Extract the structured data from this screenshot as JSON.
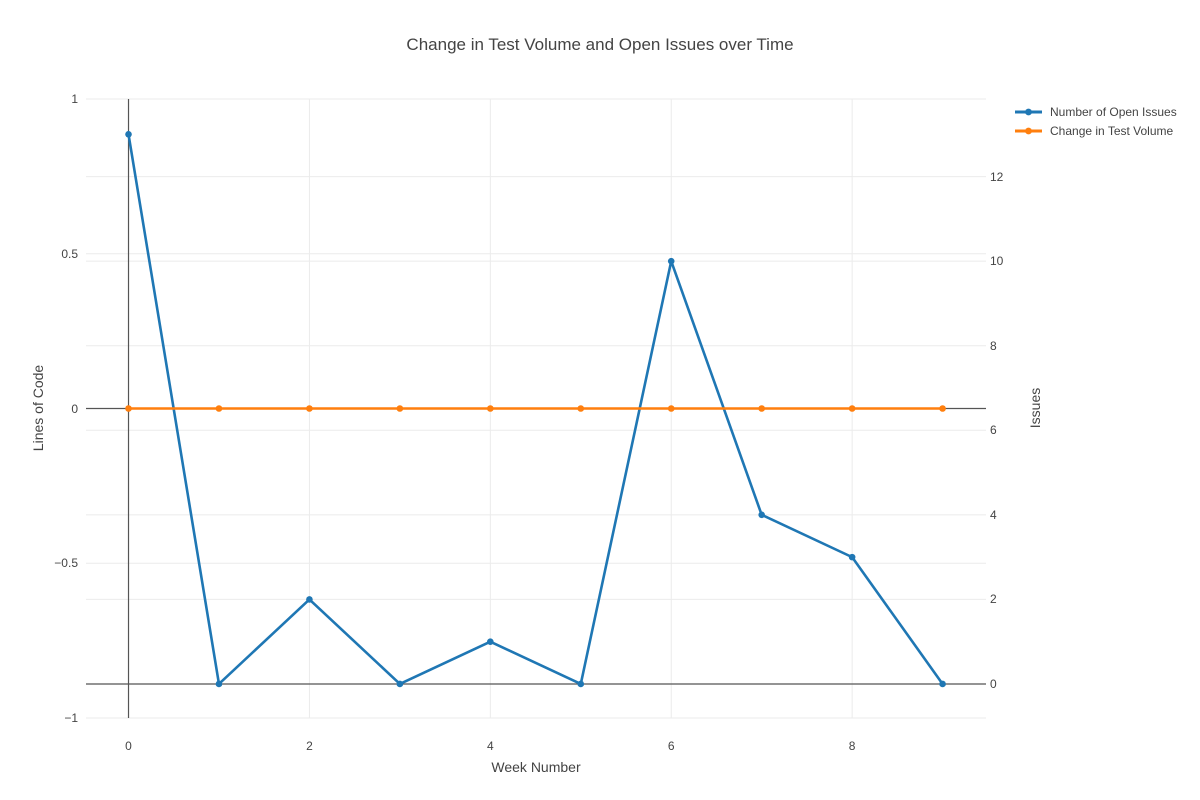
{
  "title": "Change in Test Volume and Open Issues over Time",
  "chart_data": {
    "type": "line",
    "title": "Change in Test Volume and Open Issues over Time",
    "x": [
      0,
      1,
      2,
      3,
      4,
      5,
      6,
      7,
      8,
      9
    ],
    "series": [
      {
        "name": "Number of Open Issues",
        "yaxis": "right",
        "color": "#1f77b4",
        "values": [
          13,
          0,
          2,
          0,
          1,
          0,
          10,
          4,
          3,
          0
        ]
      },
      {
        "name": "Change in Test Volume",
        "yaxis": "left",
        "color": "#ff7f0e",
        "values": [
          0,
          0,
          0,
          0,
          0,
          0,
          0,
          0,
          0,
          0
        ]
      }
    ],
    "xlabel": "Week Number",
    "ylabel_left": "Lines of Code",
    "ylabel_right": "Issues",
    "x_ticks": [
      0,
      2,
      4,
      6,
      8
    ],
    "x_tick_labels": [
      "0",
      "2",
      "4",
      "6",
      "8"
    ],
    "y_left_ticks": [
      -1,
      -0.5,
      0,
      0.5,
      1
    ],
    "y_left_tick_labels": [
      "−1",
      "−0.5",
      "0",
      "0.5",
      "1"
    ],
    "y_right_ticks": [
      0,
      2,
      4,
      6,
      8,
      10,
      12
    ],
    "y_right_tick_labels": [
      "0",
      "2",
      "4",
      "6",
      "8",
      "10",
      "12"
    ],
    "x_range": [
      -0.47,
      9.48
    ],
    "y_left_range": [
      -1,
      1
    ],
    "y_right_range": [
      -0.805,
      13.835
    ],
    "grid": true,
    "legend_position": "top-right"
  },
  "colors": {
    "series_blue": "#1f77b4",
    "series_orange": "#ff7f0e",
    "gridline": "#ebebeb",
    "zeroline": "#555555",
    "text": "#444444",
    "background": "#ffffff"
  }
}
